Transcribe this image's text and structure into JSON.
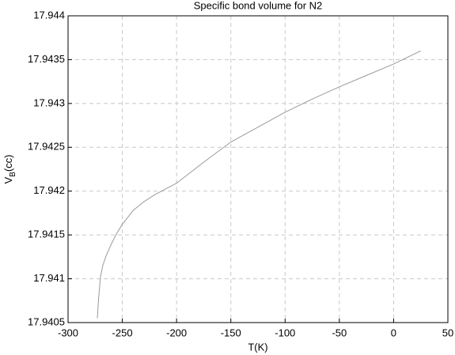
{
  "chart_data": {
    "type": "line",
    "title": "Specific bond volume for N2",
    "xlabel": "T(K)",
    "ylabel": {
      "main": "V",
      "sub": "B",
      "unit": "(cc)"
    },
    "x": [
      -273,
      -272,
      -271,
      -270,
      -268,
      -265,
      -260,
      -255,
      -250,
      -240,
      -230,
      -220,
      -200,
      -175,
      -150,
      -125,
      -100,
      -75,
      -50,
      -25,
      0,
      25
    ],
    "series": [
      {
        "name": "N2",
        "color": "#9a9a9a",
        "values": [
          17.94055,
          17.94075,
          17.9409,
          17.94103,
          17.94115,
          17.94126,
          17.9414,
          17.94152,
          17.94162,
          17.94178,
          17.94188,
          17.94196,
          17.94209,
          17.94233,
          17.94256,
          17.94273,
          17.9429,
          17.94305,
          17.94319,
          17.94332,
          17.94345,
          17.9436
        ]
      }
    ],
    "xlim": [
      -300,
      50
    ],
    "xticks": [
      -300,
      -250,
      -200,
      -150,
      -100,
      -50,
      0,
      50
    ],
    "ylim": [
      17.9405,
      17.944
    ],
    "yticks": [
      17.9405,
      17.941,
      17.9415,
      17.942,
      17.9425,
      17.943,
      17.9435,
      17.944
    ],
    "grid": true
  }
}
